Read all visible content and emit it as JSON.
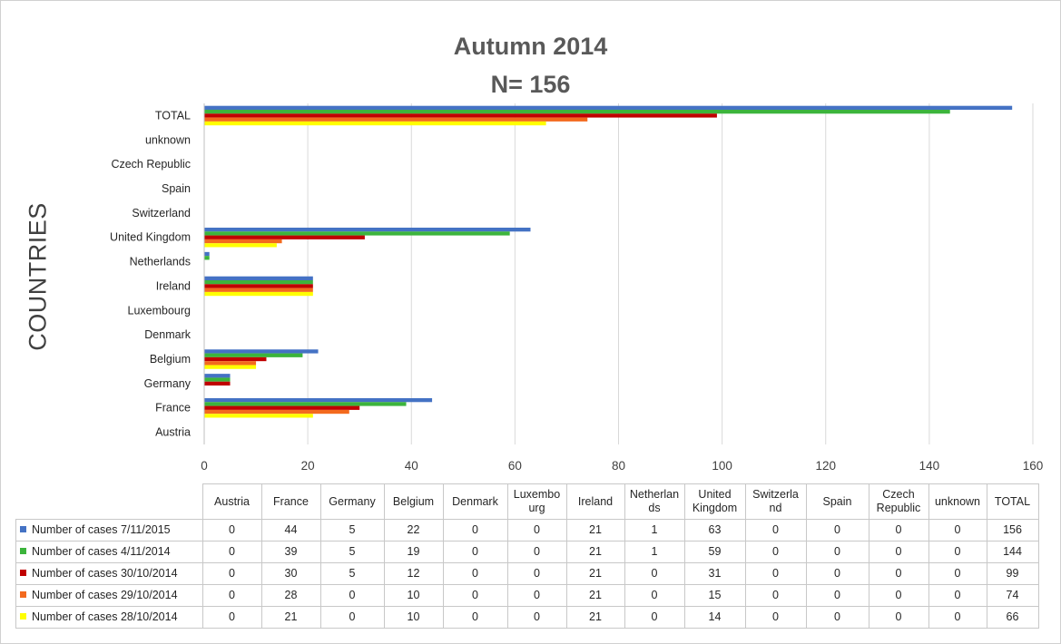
{
  "chart_data": {
    "type": "bar",
    "orientation": "horizontal",
    "title": "Autumn 2014",
    "subtitle": "N= 156",
    "ylabel": "COUNTRIES",
    "xlim": [
      0,
      160
    ],
    "xticks": [
      0,
      20,
      40,
      60,
      80,
      100,
      120,
      140,
      160
    ],
    "grid": "vertical",
    "legend": "data-table",
    "categories": [
      "Austria",
      "France",
      "Germany",
      "Belgium",
      "Denmark",
      "Luxembourg",
      "Ireland",
      "Netherlands",
      "United Kingdom",
      "Switzerland",
      "Spain",
      "Czech Republic",
      "unknown",
      "TOTAL"
    ],
    "table_headers": [
      "Austria",
      "France",
      "Germany",
      "Belgium",
      "Denmark",
      "Luxembo urg",
      "Ireland",
      "Netherlan ds",
      "United Kingdom",
      "Switzerla nd",
      "Spain",
      "Czech Republic",
      "unknown",
      "TOTAL"
    ],
    "series": [
      {
        "name": "Number of cases 7/11/2015",
        "color": "#4472C4",
        "values": [
          0,
          44,
          5,
          22,
          0,
          0,
          21,
          1,
          63,
          0,
          0,
          0,
          0,
          156
        ]
      },
      {
        "name": "Number of cases 4/11/2014",
        "color": "#3CB43C",
        "values": [
          0,
          39,
          5,
          19,
          0,
          0,
          21,
          1,
          59,
          0,
          0,
          0,
          0,
          144
        ]
      },
      {
        "name": "Number of cases 30/10/2014",
        "color": "#C00000",
        "values": [
          0,
          30,
          5,
          12,
          0,
          0,
          21,
          0,
          31,
          0,
          0,
          0,
          0,
          99
        ]
      },
      {
        "name": "Number of cases 29/10/2014",
        "color": "#F36A1E",
        "values": [
          0,
          28,
          0,
          10,
          0,
          0,
          21,
          0,
          15,
          0,
          0,
          0,
          0,
          74
        ]
      },
      {
        "name": "Number of cases 28/10/2014",
        "color": "#FFFF00",
        "values": [
          0,
          21,
          0,
          10,
          0,
          0,
          21,
          0,
          14,
          0,
          0,
          0,
          0,
          66
        ]
      }
    ]
  }
}
